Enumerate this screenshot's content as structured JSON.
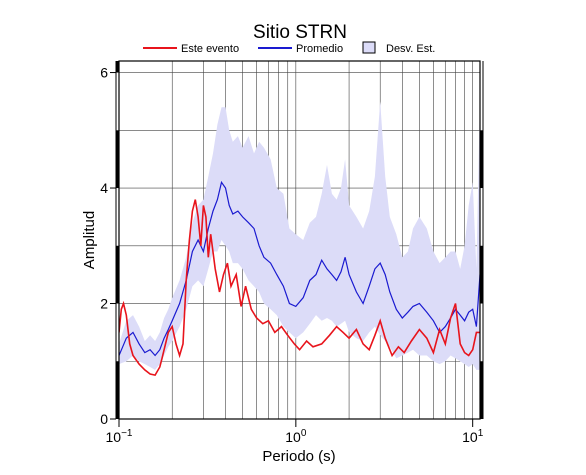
{
  "chart_data": {
    "type": "line",
    "title": "Sitio STRN",
    "xlabel": "Periodo (s)",
    "ylabel": "Amplitud",
    "x_scale": "log",
    "xlim": [
      0.1,
      11
    ],
    "ylim": [
      0,
      6.2
    ],
    "x_ticks": [
      {
        "value": 0.1,
        "base": "10",
        "exp": "−1"
      },
      {
        "value": 1,
        "base": "10",
        "exp": "0"
      },
      {
        "value": 10,
        "base": "10",
        "exp": "1"
      }
    ],
    "y_ticks": [
      0,
      2,
      4,
      6
    ],
    "grid": true,
    "legend_position": "top",
    "colors": {
      "este": "#e8141c",
      "promedio": "#1a1ad0",
      "band_fill": "#dcdcf8",
      "band_edge": "#000000"
    },
    "legend": [
      {
        "label": "Este evento",
        "kind": "line",
        "color": "#e8141c"
      },
      {
        "label": "Promedio",
        "kind": "line",
        "color": "#1a1ad0"
      },
      {
        "label": "Desv. Est.",
        "kind": "box",
        "color": "#dcdcf8"
      }
    ],
    "series": [
      {
        "name": "Este evento",
        "x": [
          0.1,
          0.103,
          0.106,
          0.11,
          0.115,
          0.12,
          0.13,
          0.14,
          0.15,
          0.16,
          0.17,
          0.175,
          0.18,
          0.19,
          0.2,
          0.21,
          0.22,
          0.23,
          0.24,
          0.25,
          0.26,
          0.27,
          0.28,
          0.29,
          0.3,
          0.31,
          0.32,
          0.33,
          0.35,
          0.37,
          0.39,
          0.41,
          0.43,
          0.46,
          0.49,
          0.52,
          0.56,
          0.6,
          0.65,
          0.7,
          0.76,
          0.83,
          0.9,
          0.98,
          1.05,
          1.15,
          1.25,
          1.4,
          1.55,
          1.7,
          1.85,
          2.0,
          2.2,
          2.4,
          2.6,
          2.8,
          3.0,
          3.2,
          3.5,
          3.8,
          4.1,
          4.5,
          5.0,
          5.5,
          6.0,
          6.5,
          7.0,
          7.5,
          8.0,
          8.5,
          9.0,
          9.5,
          10.0,
          10.5,
          11.0
        ],
        "values": [
          1.5,
          1.9,
          2.0,
          1.8,
          1.3,
          1.1,
          0.95,
          0.85,
          0.78,
          0.76,
          0.9,
          1.05,
          1.2,
          1.5,
          1.6,
          1.3,
          1.1,
          1.3,
          2.4,
          3.1,
          3.6,
          3.8,
          3.5,
          3.0,
          3.7,
          3.5,
          2.8,
          3.2,
          2.6,
          2.2,
          2.5,
          2.7,
          2.3,
          2.5,
          1.95,
          2.3,
          1.9,
          1.75,
          1.65,
          1.7,
          1.5,
          1.6,
          1.45,
          1.3,
          1.2,
          1.35,
          1.25,
          1.3,
          1.45,
          1.6,
          1.5,
          1.4,
          1.55,
          1.3,
          1.2,
          1.45,
          1.7,
          1.4,
          1.1,
          1.25,
          1.15,
          1.35,
          1.55,
          1.4,
          1.15,
          1.55,
          1.3,
          1.75,
          2.0,
          1.3,
          1.15,
          1.1,
          1.2,
          1.5,
          1.5
        ]
      },
      {
        "name": "Promedio",
        "x": [
          0.1,
          0.105,
          0.11,
          0.12,
          0.13,
          0.14,
          0.15,
          0.16,
          0.17,
          0.18,
          0.19,
          0.2,
          0.22,
          0.24,
          0.26,
          0.28,
          0.3,
          0.32,
          0.34,
          0.36,
          0.38,
          0.4,
          0.42,
          0.44,
          0.47,
          0.5,
          0.54,
          0.58,
          0.62,
          0.66,
          0.72,
          0.78,
          0.85,
          0.92,
          1.0,
          1.1,
          1.2,
          1.3,
          1.4,
          1.5,
          1.6,
          1.7,
          1.8,
          1.9,
          2.0,
          2.2,
          2.4,
          2.6,
          2.8,
          3.0,
          3.2,
          3.4,
          3.7,
          4.0,
          4.3,
          4.6,
          5.0,
          5.5,
          6.0,
          6.5,
          7.0,
          7.5,
          8.0,
          8.5,
          9.0,
          9.5,
          10.0,
          10.5,
          11.0
        ],
        "values": [
          1.1,
          1.25,
          1.4,
          1.5,
          1.3,
          1.15,
          1.2,
          1.1,
          1.2,
          1.4,
          1.55,
          1.7,
          2.0,
          2.4,
          2.9,
          3.1,
          2.9,
          3.3,
          3.6,
          3.8,
          4.1,
          4.0,
          3.7,
          3.55,
          3.6,
          3.5,
          3.4,
          3.3,
          3.0,
          2.8,
          2.7,
          2.5,
          2.3,
          2.0,
          1.95,
          2.1,
          2.4,
          2.5,
          2.75,
          2.6,
          2.5,
          2.4,
          2.55,
          2.8,
          2.5,
          2.2,
          2.0,
          2.3,
          2.6,
          2.7,
          2.5,
          2.2,
          1.9,
          1.75,
          1.85,
          1.95,
          2.0,
          1.85,
          1.7,
          1.5,
          1.6,
          1.75,
          1.9,
          1.8,
          1.7,
          1.85,
          1.9,
          1.6,
          2.5
        ]
      },
      {
        "name": "Desv. Est.",
        "kind": "band",
        "x": [
          0.1,
          0.11,
          0.12,
          0.13,
          0.14,
          0.15,
          0.16,
          0.17,
          0.18,
          0.19,
          0.2,
          0.22,
          0.24,
          0.26,
          0.28,
          0.3,
          0.32,
          0.34,
          0.36,
          0.38,
          0.4,
          0.42,
          0.44,
          0.47,
          0.5,
          0.54,
          0.58,
          0.62,
          0.66,
          0.72,
          0.78,
          0.85,
          0.92,
          1.0,
          1.1,
          1.2,
          1.3,
          1.4,
          1.5,
          1.6,
          1.7,
          1.8,
          1.9,
          2.0,
          2.2,
          2.4,
          2.6,
          2.8,
          3.0,
          3.2,
          3.4,
          3.7,
          4.0,
          4.3,
          4.6,
          5.0,
          5.5,
          6.0,
          6.5,
          7.0,
          7.5,
          8.0,
          8.5,
          9.0,
          9.5,
          10.0,
          10.5,
          11.0
        ],
        "upper": [
          1.3,
          1.7,
          1.8,
          1.6,
          1.35,
          1.45,
          1.35,
          1.5,
          1.75,
          1.9,
          2.1,
          2.4,
          2.8,
          3.4,
          3.7,
          3.8,
          4.2,
          4.6,
          5.1,
          5.4,
          5.4,
          5.0,
          4.8,
          4.9,
          4.7,
          4.9,
          4.6,
          4.8,
          4.7,
          4.5,
          4.0,
          3.9,
          3.3,
          3.2,
          3.1,
          3.4,
          3.5,
          3.9,
          4.4,
          3.9,
          3.8,
          4.0,
          4.5,
          3.7,
          3.5,
          3.3,
          3.6,
          4.2,
          5.5,
          4.2,
          3.5,
          3.2,
          2.8,
          2.9,
          3.3,
          3.5,
          3.3,
          2.9,
          2.7,
          2.8,
          2.9,
          2.9,
          2.6,
          3.0,
          3.7,
          4.1,
          2.6,
          5.6
        ],
        "lower": [
          0.95,
          1.0,
          1.1,
          1.0,
          0.95,
          0.9,
          0.85,
          0.95,
          1.1,
          1.25,
          1.35,
          1.6,
          1.9,
          2.3,
          2.4,
          2.3,
          2.6,
          2.9,
          2.9,
          3.1,
          3.0,
          2.9,
          2.7,
          2.7,
          2.6,
          2.4,
          2.3,
          2.2,
          2.0,
          1.9,
          1.8,
          1.6,
          1.5,
          1.4,
          1.5,
          1.65,
          1.8,
          1.7,
          1.75,
          1.7,
          1.6,
          1.65,
          1.7,
          1.5,
          1.4,
          1.35,
          1.5,
          1.6,
          1.45,
          1.35,
          1.25,
          1.05,
          1.1,
          1.15,
          1.2,
          1.1,
          1.1,
          1.0,
          0.95,
          1.0,
          1.1,
          1.05,
          1.0,
          0.95,
          0.9,
          0.95,
          0.85,
          0.85
        ]
      }
    ]
  }
}
